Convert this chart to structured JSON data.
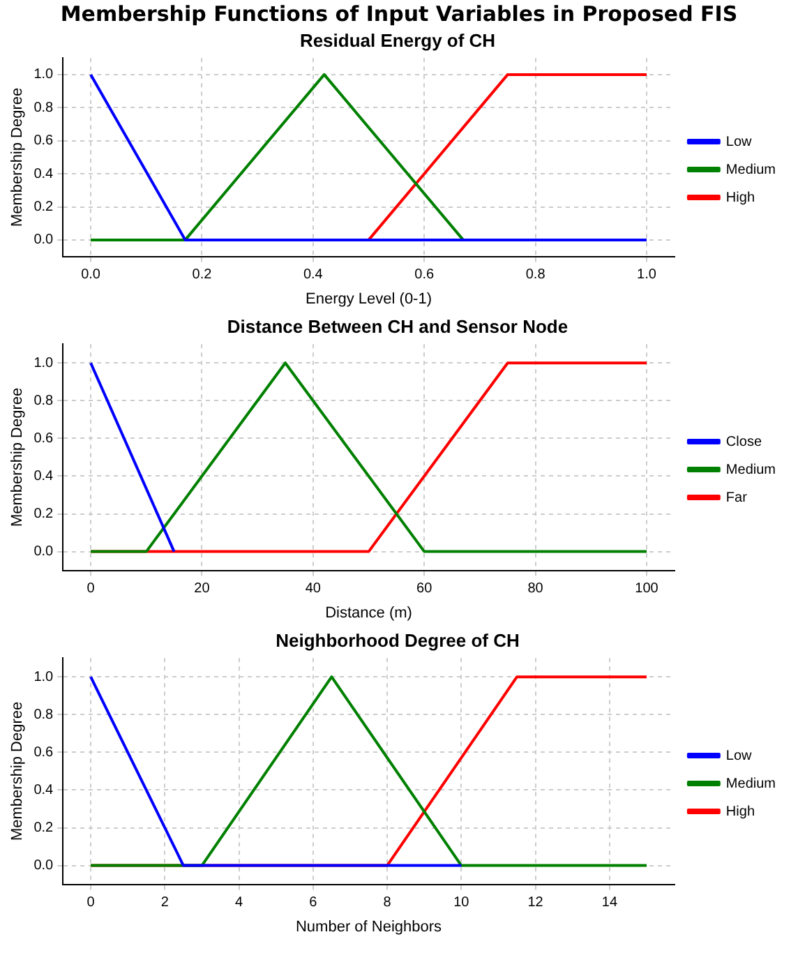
{
  "chart_data": [
    {
      "type": "line",
      "title": "Membership Functions of Input Variables in Proposed FIS",
      "subtitle": "Residual Energy of CH",
      "xlabel": "Energy Level (0-1)",
      "ylabel": "Membership Degree",
      "xlim": [
        -0.05,
        1.05
      ],
      "xticks": [
        {
          "value": 0,
          "label": "0.0"
        },
        {
          "value": 0.2,
          "label": "0.2"
        },
        {
          "value": 0.4,
          "label": "0.4"
        },
        {
          "value": 0.6,
          "label": "0.6"
        },
        {
          "value": 0.8,
          "label": "0.8"
        },
        {
          "value": 1,
          "label": "1.0"
        }
      ],
      "ylim": [
        -0.1,
        1.1
      ],
      "yticks": [
        {
          "value": 0,
          "label": "0.0"
        },
        {
          "value": 0.2,
          "label": "0.2"
        },
        {
          "value": 0.4,
          "label": "0.4"
        },
        {
          "value": 0.6,
          "label": "0.6"
        },
        {
          "value": 0.8,
          "label": "0.8"
        },
        {
          "value": 1,
          "label": "1.0"
        }
      ],
      "grid": true,
      "legend": "right",
      "marker": "none",
      "line_style": "solid",
      "series": [
        {
          "name": "Low",
          "color": "#0000ff",
          "x": [
            0,
            0.17,
            1
          ],
          "values": [
            1,
            0,
            0
          ]
        },
        {
          "name": "Medium",
          "color": "#008000",
          "x": [
            0,
            0.17,
            0.42,
            0.67,
            1
          ],
          "values": [
            0,
            0,
            1,
            0,
            0
          ]
        },
        {
          "name": "High",
          "color": "#ff0000",
          "x": [
            0,
            0.5,
            0.75,
            1
          ],
          "values": [
            0,
            0,
            1,
            1
          ]
        }
      ]
    },
    {
      "type": "line",
      "title": "Distance Between CH and Sensor Node",
      "xlabel": "Distance (m)",
      "ylabel": "Membership Degree",
      "xlim": [
        -5,
        105
      ],
      "xticks": [
        0,
        20,
        40,
        60,
        80,
        100
      ],
      "ylim": [
        -0.1,
        1.1
      ],
      "yticks": [
        {
          "value": 0,
          "label": "0.0"
        },
        {
          "value": 0.2,
          "label": "0.2"
        },
        {
          "value": 0.4,
          "label": "0.4"
        },
        {
          "value": 0.6,
          "label": "0.6"
        },
        {
          "value": 0.8,
          "label": "0.8"
        },
        {
          "value": 1,
          "label": "1.0"
        }
      ],
      "grid": true,
      "legend": "right",
      "marker": "none",
      "line_style": "solid",
      "series": [
        {
          "name": "Close",
          "color": "#0000ff",
          "x": [
            0,
            15
          ],
          "values": [
            1,
            0
          ]
        },
        {
          "name": "Medium",
          "color": "#008000",
          "x": [
            0,
            10,
            35,
            60,
            100
          ],
          "values": [
            0,
            0,
            1,
            0,
            0
          ]
        },
        {
          "name": "Far",
          "color": "#ff0000",
          "x": [
            0,
            50,
            75,
            100
          ],
          "values": [
            0,
            0,
            1,
            1
          ]
        }
      ]
    },
    {
      "type": "line",
      "title": "Neighborhood Degree of CH",
      "xlabel": "Number of Neighbors",
      "ylabel": "Membership Degree",
      "xlim": [
        -0.75,
        15.75
      ],
      "xticks": [
        0,
        2,
        4,
        6,
        8,
        10,
        12,
        14
      ],
      "ylim": [
        -0.1,
        1.1
      ],
      "yticks": [
        {
          "value": 0,
          "label": "0.0"
        },
        {
          "value": 0.2,
          "label": "0.2"
        },
        {
          "value": 0.4,
          "label": "0.4"
        },
        {
          "value": 0.6,
          "label": "0.6"
        },
        {
          "value": 0.8,
          "label": "0.8"
        },
        {
          "value": 1,
          "label": "1.0"
        }
      ],
      "grid": true,
      "legend": "right",
      "marker": "none",
      "line_style": "solid",
      "series": [
        {
          "name": "Low",
          "color": "#0000ff",
          "x": [
            0,
            2.5,
            10
          ],
          "values": [
            1,
            0,
            0
          ]
        },
        {
          "name": "Medium",
          "color": "#008000",
          "x": [
            0,
            3,
            6.5,
            10,
            15
          ],
          "values": [
            0,
            0,
            1,
            0,
            0
          ]
        },
        {
          "name": "High",
          "color": "#ff0000",
          "x": [
            0,
            8,
            11.5,
            15
          ],
          "values": [
            0,
            0,
            1,
            1
          ]
        }
      ]
    }
  ]
}
